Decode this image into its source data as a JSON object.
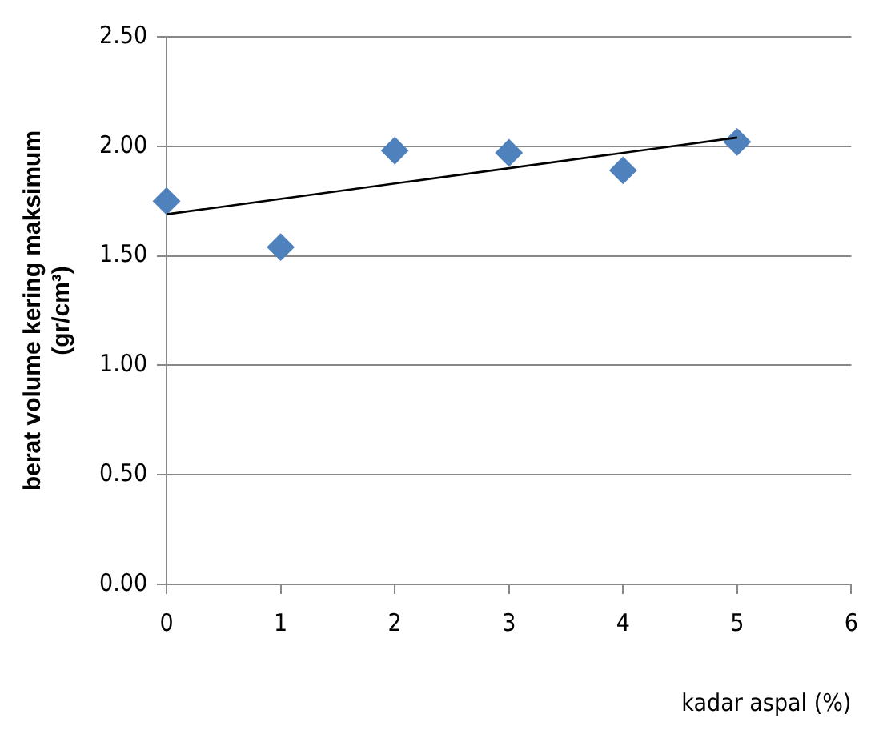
{
  "chart_data": {
    "type": "scatter",
    "xlabel": "kadar aspal (%)",
    "ylabel": "berat volume kering maksimum\n(gr/cm³)",
    "x": [
      0,
      1,
      2,
      3,
      4,
      5
    ],
    "series": [
      {
        "type": "scatter",
        "color": "#4f81bd",
        "marker": "diamond",
        "values": [
          1.75,
          1.54,
          1.98,
          1.97,
          1.89,
          2.02
        ]
      },
      {
        "type": "line",
        "color": "#000000",
        "marker": "none",
        "x": [
          0,
          5
        ],
        "values": [
          1.69,
          2.04
        ]
      }
    ],
    "xlim": [
      0,
      6
    ],
    "xticks": [
      0,
      1,
      2,
      3,
      4,
      5,
      6
    ],
    "ylim": [
      0,
      2.5
    ],
    "yticks": [
      {
        "value": 0,
        "label": "0.00"
      },
      {
        "value": 0.5,
        "label": "0.50"
      },
      {
        "value": 1,
        "label": "1.00"
      },
      {
        "value": 1.5,
        "label": "1.50"
      },
      {
        "value": 2,
        "label": "2.00"
      },
      {
        "value": 2.5,
        "label": "2.50"
      }
    ],
    "grid": "y",
    "legend": false
  }
}
